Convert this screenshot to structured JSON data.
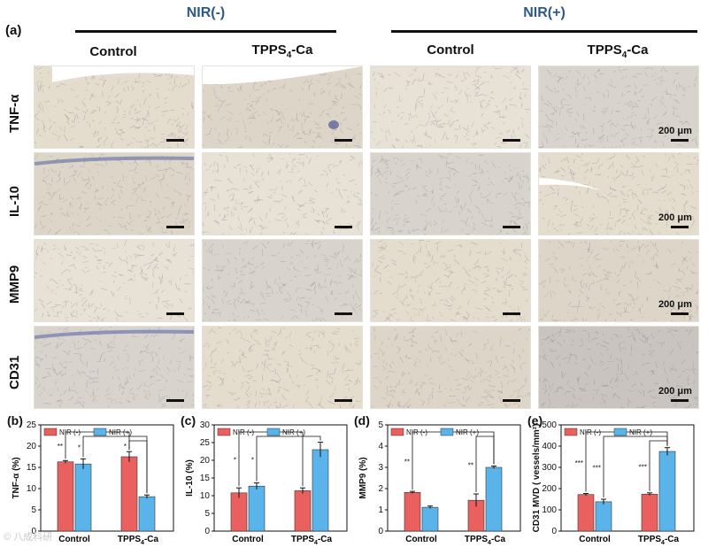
{
  "panel_a": {
    "letter": "(a)",
    "groups": [
      "NIR(-)",
      "NIR(+)"
    ],
    "columns": [
      "Control",
      "TPPS",
      "Control",
      "TPPS"
    ],
    "tpps_sub": "4",
    "tpps_suffix": "-Ca",
    "rows": [
      "TNF-α",
      "IL-10",
      "MMP9",
      "CD31"
    ],
    "scale_label": "200 μm"
  },
  "bar_charts": [
    {
      "letter": "(b)",
      "chart_data": {
        "type": "bar",
        "categories": [
          "Control",
          "TPPS4-Ca"
        ],
        "series": [
          {
            "name": "NIR (-)",
            "values": [
              16.3,
              17.5
            ],
            "errors": [
              0.3,
              1.2
            ],
            "color": "#e9605f"
          },
          {
            "name": "NIR (+)",
            "values": [
              15.8,
              8.1
            ],
            "errors": [
              1.2,
              0.4
            ],
            "color": "#5ab4e9"
          }
        ],
        "ylabel": "TNF-α (%)",
        "ylim": [
          0,
          25
        ],
        "yticks": [
          0,
          5,
          10,
          15,
          20,
          25
        ],
        "significance": [
          {
            "label": "**",
            "from": "Control NIR (-)",
            "to": "TPPS4-Ca NIR (-)"
          },
          {
            "label": "*",
            "from": "Control NIR (+)",
            "to": "TPPS4-Ca NIR (+)"
          },
          {
            "label": "*",
            "from": "TPPS4-Ca NIR (-)",
            "to": "TPPS4-Ca NIR (+)"
          }
        ]
      }
    },
    {
      "letter": "(c)",
      "chart_data": {
        "type": "bar",
        "categories": [
          "Control",
          "TPPS4-Ca"
        ],
        "series": [
          {
            "name": "NIR (-)",
            "values": [
              10.8,
              11.4
            ],
            "errors": [
              1.4,
              0.8
            ],
            "color": "#e9605f"
          },
          {
            "name": "NIR (+)",
            "values": [
              12.7,
              23.0
            ],
            "errors": [
              0.9,
              2.1
            ],
            "color": "#5ab4e9"
          }
        ],
        "ylabel": "IL-10 (%)",
        "ylim": [
          0,
          30
        ],
        "yticks": [
          0,
          5,
          10,
          15,
          20,
          25,
          30
        ],
        "significance": [
          {
            "label": "*",
            "from": "Control NIR (-)",
            "to": "TPPS4-Ca NIR (-)"
          },
          {
            "label": "*",
            "from": "Control NIR (+)",
            "to": "TPPS4-Ca NIR (+)"
          }
        ]
      }
    },
    {
      "letter": "(d)",
      "chart_data": {
        "type": "bar",
        "categories": [
          "Control",
          "TPPS4-Ca"
        ],
        "series": [
          {
            "name": "NIR (-)",
            "values": [
              1.82,
              1.45
            ],
            "errors": [
              0.05,
              0.3
            ],
            "color": "#e9605f"
          },
          {
            "name": "NIR (+)",
            "values": [
              1.12,
              3.0
            ],
            "errors": [
              0.06,
              0.06
            ],
            "color": "#5ab4e9"
          }
        ],
        "ylabel": "MMP9 (%)",
        "ylim": [
          0,
          5
        ],
        "yticks": [
          0,
          1,
          2,
          3,
          4,
          5
        ],
        "significance": [
          {
            "label": "**",
            "from": "Control NIR (-)",
            "to": "TPPS4-Ca NIR (+)"
          },
          {
            "label": "**",
            "from": "TPPS4-Ca NIR (-)",
            "to": "TPPS4-Ca NIR (+)"
          }
        ]
      }
    },
    {
      "letter": "(e)",
      "chart_data": {
        "type": "bar",
        "categories": [
          "Control",
          "TPPS4-Ca"
        ],
        "series": [
          {
            "name": "NIR (-)",
            "values": [
              172,
              174
            ],
            "errors": [
              5,
              6
            ],
            "color": "#e9605f"
          },
          {
            "name": "NIR (+)",
            "values": [
              138,
              375
            ],
            "errors": [
              12,
              18
            ],
            "color": "#5ab4e9"
          }
        ],
        "ylabel": "CD31 MVD ( vessels/mm²)",
        "ylim": [
          0,
          500
        ],
        "yticks": [
          0,
          100,
          200,
          300,
          400,
          500
        ],
        "significance": [
          {
            "label": "***",
            "from": "Control NIR (-)",
            "to": "TPPS4-Ca NIR (+)"
          },
          {
            "label": "***",
            "from": "Control NIR (+)",
            "to": "TPPS4-Ca NIR (+)"
          },
          {
            "label": "***",
            "from": "TPPS4-Ca NIR (-)",
            "to": "TPPS4-Ca NIR (+)"
          }
        ]
      }
    }
  ],
  "watermark": "© 八成科研"
}
